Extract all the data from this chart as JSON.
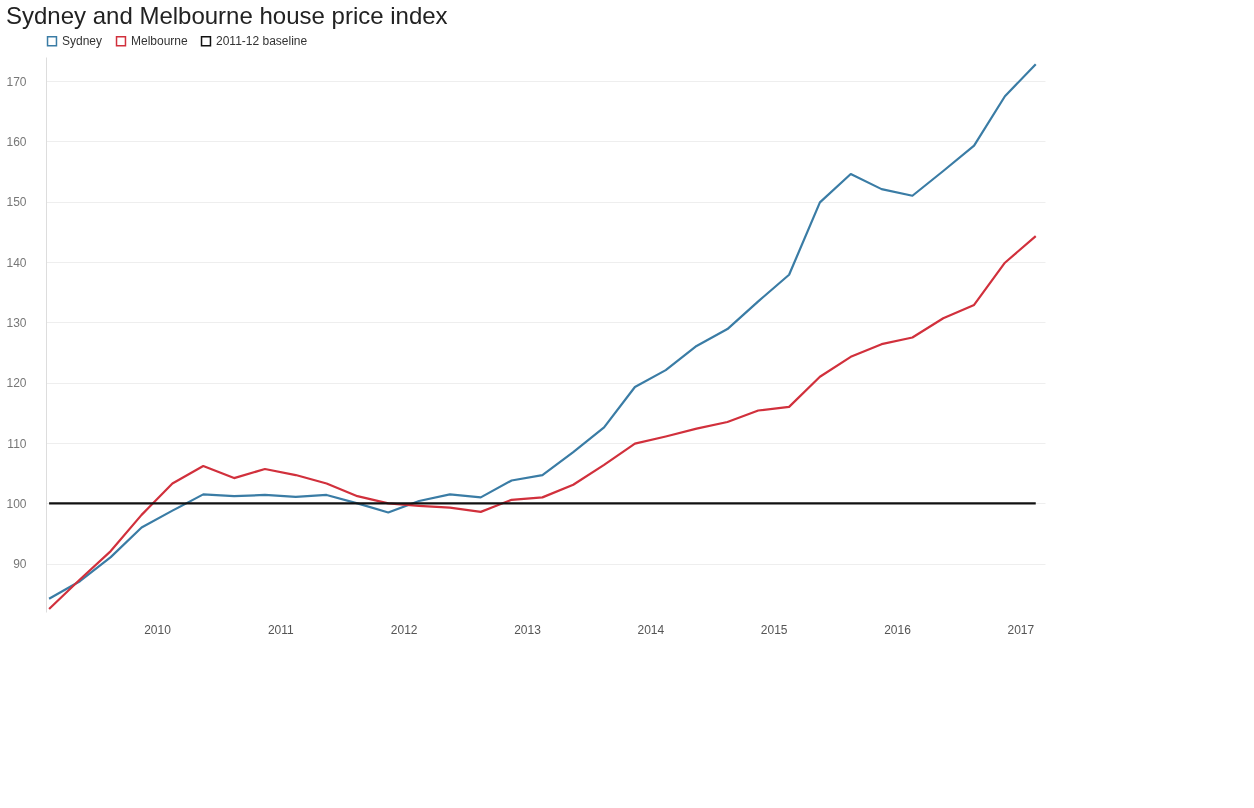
{
  "chart_data": {
    "type": "line",
    "title": "Sydney and Melbourne house price index",
    "x": [
      2009.125,
      2009.375,
      2009.625,
      2009.875,
      2010.125,
      2010.375,
      2010.625,
      2010.875,
      2011.125,
      2011.375,
      2011.625,
      2011.875,
      2012.125,
      2012.375,
      2012.625,
      2012.875,
      2013.125,
      2013.375,
      2013.625,
      2013.875,
      2014.125,
      2014.375,
      2014.625,
      2014.875,
      2015.125,
      2015.375,
      2015.625,
      2015.875,
      2016.125,
      2016.375,
      2016.625,
      2016.875,
      2017.125
    ],
    "series": [
      {
        "name": "Sydney",
        "color": "#3a7ca5",
        "values": [
          84.2,
          87.1,
          91.1,
          96,
          98.8,
          101.5,
          101.2,
          101.4,
          101.1,
          101.4,
          100,
          98.5,
          100.4,
          101.5,
          101,
          103.8,
          104.7,
          108.5,
          112.6,
          119.3,
          122.1,
          126.1,
          128.9,
          133.5,
          137.9,
          149.9,
          154.6,
          152.1,
          151,
          155.1,
          159.3,
          167.5,
          172.8
        ]
      },
      {
        "name": "Melbourne",
        "color": "#d1303c",
        "values": [
          82.5,
          87.4,
          92.1,
          98.1,
          103.3,
          106.2,
          104.2,
          105.7,
          104.7,
          103.3,
          101.2,
          100,
          99.6,
          99.3,
          98.6,
          100.6,
          101,
          103.1,
          106.4,
          109.9,
          111.1,
          112.4,
          113.5,
          115.4,
          116,
          121,
          124.3,
          126.4,
          127.5,
          130.7,
          132.9,
          139.9,
          144.3
        ]
      },
      {
        "name": "2011-12 baseline",
        "color": "#111111",
        "values": [
          100,
          100,
          100,
          100,
          100,
          100,
          100,
          100,
          100,
          100,
          100,
          100,
          100,
          100,
          100,
          100,
          100,
          100,
          100,
          100,
          100,
          100,
          100,
          100,
          100,
          100,
          100,
          100,
          100,
          100,
          100,
          100,
          100
        ]
      }
    ],
    "xlim": [
      2009.1,
      2017.2
    ],
    "xticks": [
      2010,
      2011,
      2012,
      2013,
      2014,
      2015,
      2016,
      2017
    ],
    "ylim": [
      82,
      174
    ],
    "yticks": [
      90,
      100,
      110,
      120,
      130,
      140,
      150,
      160,
      170
    ],
    "grid": "y",
    "legend": "top left"
  }
}
